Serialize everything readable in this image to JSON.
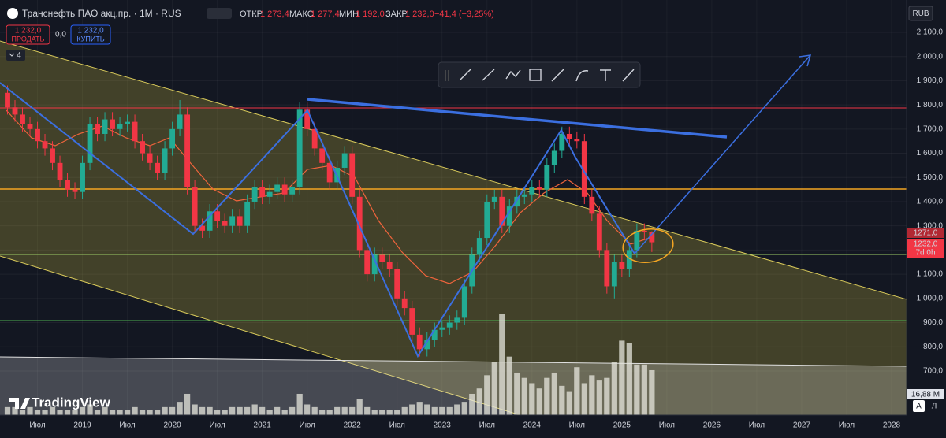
{
  "header": {
    "symbol": "Транснефть ПАО акц.пр. · 1M · RUS",
    "open_label": "ОТКР",
    "open": "1 273,4",
    "high_label": "МАКС",
    "high": "1 277,4",
    "low_label": "МИН",
    "low": "1 192,0",
    "close_label": "ЗАКР",
    "close": "1 232,0",
    "change": "−41,4 (−3,25%)"
  },
  "trade": {
    "sell_price": "1 232,0",
    "sell": "ПРОДАТЬ",
    "spread": "0,0",
    "buy_price": "1 232,0",
    "buy": "КУПИТЬ"
  },
  "indicators_count": "4",
  "currency": "RUB",
  "price_labels": [
    "1271,0",
    "1232,0",
    "7d 0h"
  ],
  "logo": "TradingView",
  "scale_buttons": [
    "A",
    "Л"
  ],
  "chart_data": {
    "type": "candlestick",
    "x": [
      "2018-03",
      "2018-04",
      "2018-05",
      "2018-06",
      "2018-07",
      "2018-08",
      "2018-09",
      "2018-10",
      "2018-11",
      "2018-12",
      "2019-01",
      "2019-02",
      "2019-03",
      "2019-04",
      "2019-05",
      "2019-06",
      "2019-07",
      "2019-08",
      "2019-09",
      "2019-10",
      "2019-11",
      "2019-12",
      "2020-01",
      "2020-02",
      "2020-03",
      "2020-04",
      "2020-05",
      "2020-06",
      "2020-07",
      "2020-08",
      "2020-09",
      "2020-10",
      "2020-11",
      "2020-12",
      "2021-01",
      "2021-02",
      "2021-03",
      "2021-04",
      "2021-05",
      "2021-06",
      "2021-07",
      "2021-08",
      "2021-09",
      "2021-10",
      "2021-11",
      "2021-12",
      "2022-01",
      "2022-02",
      "2022-03",
      "2022-04",
      "2022-05",
      "2022-06",
      "2022-07",
      "2022-08",
      "2022-09",
      "2022-10",
      "2022-11",
      "2022-12",
      "2023-01",
      "2023-02",
      "2023-03",
      "2023-04",
      "2023-05",
      "2023-06",
      "2023-07",
      "2023-08",
      "2023-09",
      "2023-10",
      "2023-11",
      "2023-12",
      "2024-01",
      "2024-02",
      "2024-03",
      "2024-04",
      "2024-05",
      "2024-06",
      "2024-07",
      "2024-08",
      "2024-09",
      "2024-10",
      "2024-11",
      "2024-12",
      "2025-01",
      "2025-02",
      "2025-03",
      "2025-04",
      "2025-05"
    ],
    "open": [
      1850,
      1790,
      1760,
      1720,
      1700,
      1650,
      1620,
      1560,
      1490,
      1450,
      1440,
      1560,
      1720,
      1680,
      1740,
      1700,
      1720,
      1730,
      1650,
      1600,
      1560,
      1520,
      1620,
      1700,
      1760,
      1460,
      1300,
      1280,
      1360,
      1320,
      1300,
      1340,
      1300,
      1400,
      1460,
      1420,
      1440,
      1470,
      1430,
      1460,
      1780,
      1700,
      1620,
      1560,
      1480,
      1540,
      1600,
      1420,
      1200,
      1100,
      1180,
      1150,
      1120,
      1000,
      960,
      850,
      790,
      830,
      870,
      880,
      900,
      920,
      1050,
      1180,
      1250,
      1400,
      1420,
      1300,
      1380,
      1420,
      1430,
      1460,
      1450,
      1550,
      1610,
      1680,
      1660,
      1650,
      1420,
      1350,
      1200,
      1050,
      1150,
      1120,
      1200,
      1280,
      1273.4
    ],
    "high": [
      1880,
      1820,
      1790,
      1750,
      1730,
      1680,
      1650,
      1590,
      1520,
      1480,
      1590,
      1750,
      1750,
      1770,
      1770,
      1750,
      1760,
      1760,
      1680,
      1630,
      1590,
      1650,
      1730,
      1820,
      1790,
      1490,
      1330,
      1390,
      1390,
      1350,
      1370,
      1370,
      1430,
      1490,
      1490,
      1470,
      1500,
      1500,
      1490,
      1810,
      1810,
      1730,
      1650,
      1590,
      1570,
      1630,
      1630,
      1450,
      1230,
      1210,
      1210,
      1180,
      1150,
      1030,
      990,
      880,
      860,
      900,
      910,
      930,
      950,
      1080,
      1210,
      1280,
      1430,
      1450,
      1450,
      1410,
      1450,
      1460,
      1490,
      1490,
      1580,
      1640,
      1710,
      1710,
      1690,
      1680,
      1450,
      1380,
      1230,
      1180,
      1180,
      1230,
      1310,
      1310,
      1277.4
    ],
    "low": [
      1760,
      1730,
      1690,
      1670,
      1620,
      1590,
      1530,
      1460,
      1420,
      1410,
      1410,
      1530,
      1650,
      1650,
      1670,
      1670,
      1690,
      1620,
      1570,
      1530,
      1490,
      1490,
      1590,
      1670,
      1430,
      1270,
      1250,
      1250,
      1290,
      1270,
      1270,
      1270,
      1270,
      1370,
      1390,
      1390,
      1410,
      1400,
      1400,
      1430,
      1670,
      1590,
      1530,
      1450,
      1450,
      1510,
      1390,
      1170,
      1070,
      1070,
      1120,
      1090,
      970,
      930,
      820,
      760,
      760,
      800,
      840,
      850,
      870,
      890,
      1020,
      1150,
      1220,
      1370,
      1270,
      1270,
      1350,
      1390,
      1400,
      1420,
      1420,
      1520,
      1580,
      1630,
      1620,
      1390,
      1320,
      1170,
      1020,
      1000,
      1090,
      1090,
      1170,
      1240,
      1192
    ],
    "close": [
      1790,
      1760,
      1720,
      1700,
      1650,
      1620,
      1560,
      1490,
      1450,
      1440,
      1560,
      1720,
      1680,
      1740,
      1700,
      1720,
      1730,
      1650,
      1600,
      1560,
      1520,
      1620,
      1700,
      1760,
      1460,
      1300,
      1280,
      1360,
      1320,
      1300,
      1340,
      1300,
      1400,
      1460,
      1420,
      1440,
      1470,
      1430,
      1460,
      1780,
      1700,
      1620,
      1560,
      1480,
      1540,
      1600,
      1420,
      1200,
      1100,
      1180,
      1150,
      1120,
      1000,
      960,
      850,
      790,
      830,
      870,
      880,
      900,
      920,
      1050,
      1180,
      1250,
      1400,
      1420,
      1300,
      1380,
      1420,
      1430,
      1460,
      1450,
      1550,
      1610,
      1680,
      1660,
      1650,
      1420,
      1350,
      1200,
      1050,
      1150,
      1120,
      1200,
      1280,
      1273.4,
      1232
    ],
    "volume": [
      3,
      3,
      2,
      3,
      2,
      2,
      3,
      2,
      2,
      2,
      3,
      4,
      2,
      3,
      2,
      2,
      2,
      3,
      2,
      2,
      2,
      3,
      3,
      5,
      8,
      4,
      3,
      3,
      2,
      2,
      3,
      3,
      3,
      4,
      3,
      2,
      3,
      2,
      3,
      8,
      4,
      3,
      2,
      2,
      3,
      3,
      3,
      6,
      3,
      2,
      2,
      2,
      2,
      3,
      4,
      5,
      4,
      3,
      3,
      3,
      4,
      5,
      8,
      10,
      15,
      20,
      38,
      22,
      16,
      14,
      12,
      10,
      14,
      16,
      11,
      9,
      18,
      12,
      15,
      13,
      14,
      20,
      28,
      27,
      19,
      19,
      16.88
    ],
    "volume_label": "16,88 M",
    "volume_lim": [
      0,
      156
    ],
    "up_color": "#22ab94",
    "down_color": "#f23645",
    "volume_color": "rgba(230,230,220,0.75)",
    "grid": true,
    "xlim": [
      "2018-02",
      "2028-03"
    ],
    "ylim": [
      517.5,
      2233.5
    ],
    "yticks": [
      {
        "value": 2100,
        "label": "2 100,0"
      },
      {
        "value": 2000,
        "label": "2 000,0"
      },
      {
        "value": 1900,
        "label": "1 900,0"
      },
      {
        "value": 1800,
        "label": "1 800,0"
      },
      {
        "value": 1700,
        "label": "1 700,0"
      },
      {
        "value": 1600,
        "label": "1 600,0"
      },
      {
        "value": 1500,
        "label": "1 500,0"
      },
      {
        "value": 1400,
        "label": "1 400,0"
      },
      {
        "value": 1300,
        "label": "1 300,0"
      },
      {
        "value": 1200,
        "label": "1 200,0"
      },
      {
        "value": 1100,
        "label": "1 100,0"
      },
      {
        "value": 1000,
        "label": "1 000,0"
      },
      {
        "value": 900,
        "label": "900,0"
      },
      {
        "value": 800,
        "label": "800,0"
      },
      {
        "value": 700,
        "label": "700,0"
      }
    ],
    "xticks": [
      {
        "value": "2018-07",
        "label": "Июл"
      },
      {
        "value": "2019-01",
        "label": "2019"
      },
      {
        "value": "2019-07",
        "label": "Июл"
      },
      {
        "value": "2020-01",
        "label": "2020"
      },
      {
        "value": "2020-07",
        "label": "Июл"
      },
      {
        "value": "2021-01",
        "label": "2021"
      },
      {
        "value": "2021-07",
        "label": "Июл"
      },
      {
        "value": "2022-01",
        "label": "2022"
      },
      {
        "value": "2022-07",
        "label": "Июл"
      },
      {
        "value": "2023-01",
        "label": "2023"
      },
      {
        "value": "2023-07",
        "label": "Июл"
      },
      {
        "value": "2024-01",
        "label": "2024"
      },
      {
        "value": "2024-07",
        "label": "Июл"
      },
      {
        "value": "2025-01",
        "label": "2025"
      },
      {
        "value": "2025-07",
        "label": "Июл"
      },
      {
        "value": "2026-01",
        "label": "2026"
      },
      {
        "value": "2026-07",
        "label": "Июл"
      },
      {
        "value": "2027-01",
        "label": "2027"
      },
      {
        "value": "2027-07",
        "label": "Июл"
      },
      {
        "value": "2028-01",
        "label": "2028"
      }
    ]
  }
}
